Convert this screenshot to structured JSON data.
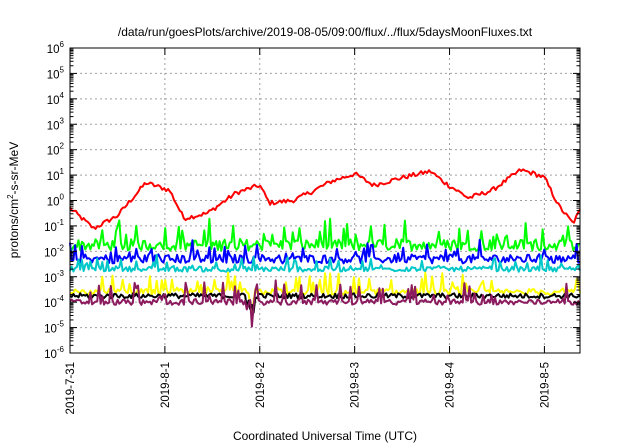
{
  "chart_data": {
    "type": "line",
    "title": "/data/run/goesPlots/archive/2019-08-05/09:00/flux/../flux/5daysMoonFluxes.txt",
    "xlabel": "Coordinated Universal Time (UTC)",
    "ylabel_parts": [
      "protons/cm",
      "2",
      "-s-sr-MeV"
    ],
    "y_scale": "log",
    "ylim": [
      1e-06,
      1000000.0
    ],
    "y_ticks": [
      {
        "base": "10",
        "exp": "-6"
      },
      {
        "base": "10",
        "exp": "-5"
      },
      {
        "base": "10",
        "exp": "-4"
      },
      {
        "base": "10",
        "exp": "-3"
      },
      {
        "base": "10",
        "exp": "-2"
      },
      {
        "base": "10",
        "exp": "-1"
      },
      {
        "base": "10",
        "exp": "0"
      },
      {
        "base": "10",
        "exp": "1"
      },
      {
        "base": "10",
        "exp": "2"
      },
      {
        "base": "10",
        "exp": "3"
      },
      {
        "base": "10",
        "exp": "4"
      },
      {
        "base": "10",
        "exp": "5"
      },
      {
        "base": "10",
        "exp": "6"
      }
    ],
    "xlim": [
      "2019-07-31 00:00",
      "2019-08-05 09:00"
    ],
    "x_ticks": [
      "2019-7-31",
      "2019-8-1",
      "2019-8-2",
      "2019-8-3",
      "2019-8-4",
      "2019-8-5"
    ],
    "grid": true,
    "legend": "none",
    "series": [
      {
        "color": "#ff0000",
        "x": [
          0,
          0.25,
          0.5,
          0.8,
          1.05,
          1.2,
          1.45,
          1.75,
          2.0,
          2.1,
          2.35,
          2.55,
          2.75,
          3.0,
          3.2,
          3.5,
          3.8,
          3.95,
          4.2,
          4.45,
          4.75,
          4.9,
          5.0,
          5.15,
          5.3,
          5.375
        ],
        "logy": [
          -0.3,
          -1.1,
          -0.6,
          0.7,
          0.4,
          -0.7,
          -0.5,
          0.3,
          0.6,
          -0.1,
          0.0,
          0.35,
          0.75,
          1.05,
          0.6,
          0.9,
          1.15,
          0.7,
          0.1,
          0.4,
          1.2,
          1.05,
          0.9,
          -0.2,
          -0.9,
          -0.4
        ]
      },
      {
        "color": "#00ff00",
        "x": [
          0,
          5.375
        ],
        "logy": [
          -1.75,
          -1.75
        ]
      },
      {
        "color": "#0000ff",
        "x": [
          0,
          5.375
        ],
        "logy": [
          -2.3,
          -2.3
        ]
      },
      {
        "color": "#00c8c8",
        "x": [
          0,
          5.375
        ],
        "logy": [
          -2.7,
          -2.7
        ]
      },
      {
        "color": "#ffff00",
        "x": [
          0,
          5.375
        ],
        "logy": [
          -3.6,
          -3.6
        ]
      },
      {
        "color": "#000000",
        "x": [
          0,
          5.375
        ],
        "logy": [
          -3.75,
          -3.75
        ]
      },
      {
        "color": "#8b1a5e",
        "x": [
          0,
          5.375
        ],
        "logy": [
          -4.0,
          -4.0
        ]
      }
    ]
  }
}
